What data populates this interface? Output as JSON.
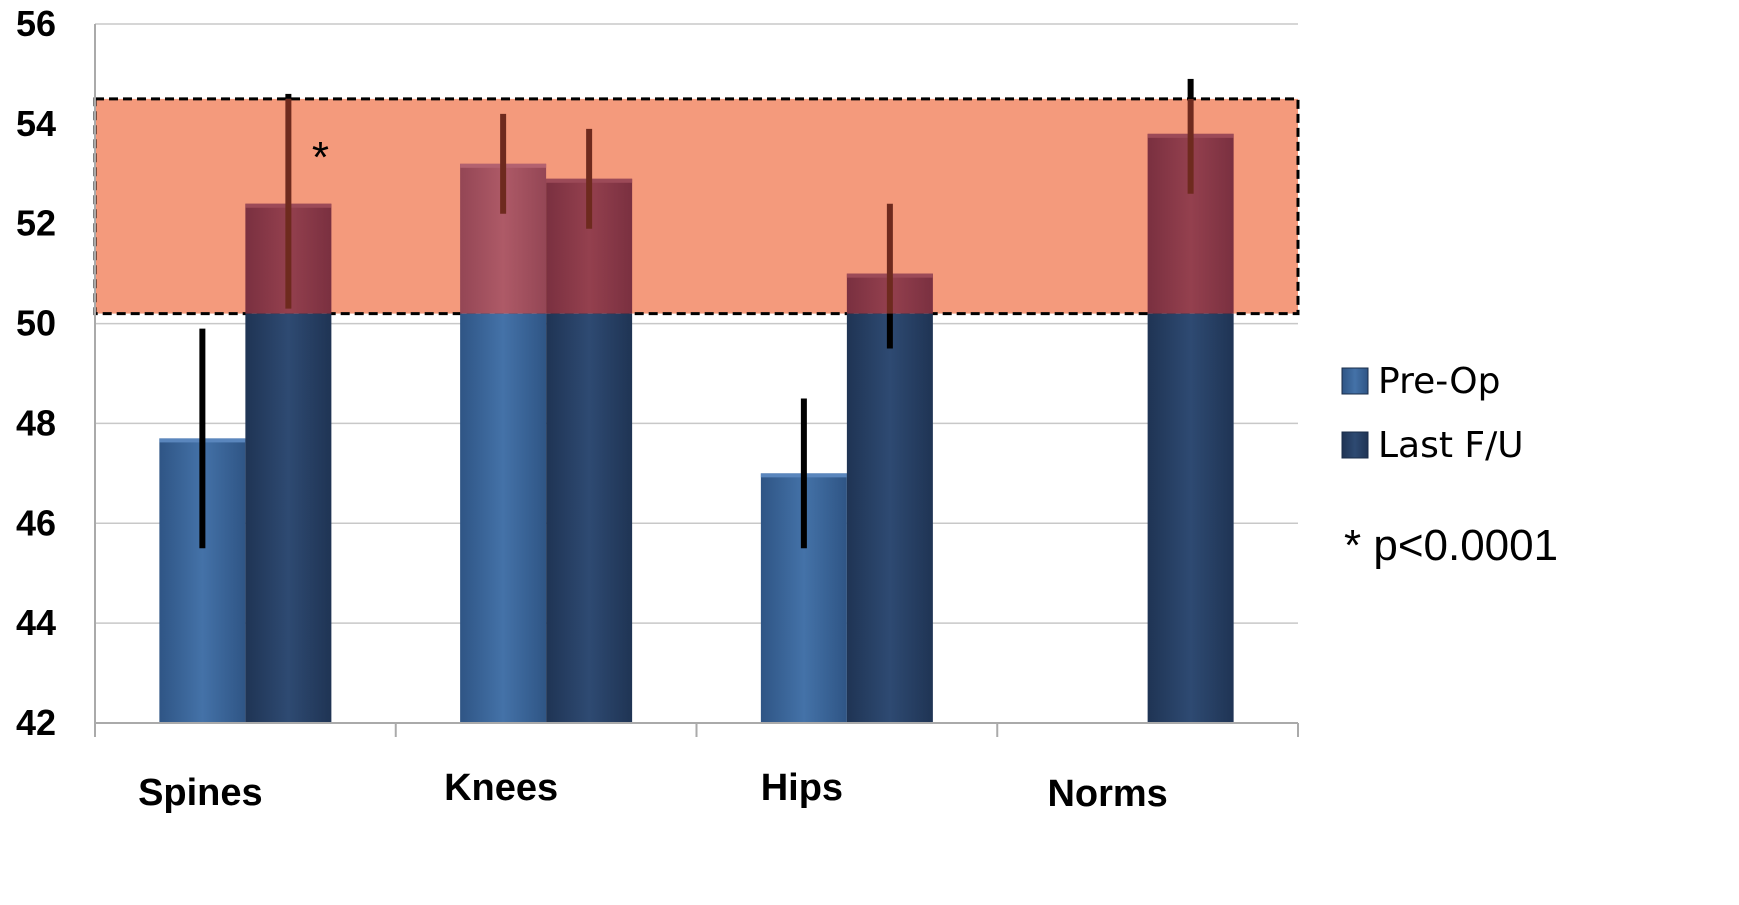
{
  "chart_data": {
    "type": "bar",
    "categories": [
      "Spines",
      "Knees",
      "Hips",
      "Norms"
    ],
    "series": [
      {
        "name": "Pre-Op",
        "values": [
          47.7,
          53.2,
          47.0,
          null
        ],
        "error_low": [
          45.5,
          52.2,
          45.5,
          null
        ],
        "error_high": [
          49.9,
          54.2,
          48.5,
          null
        ],
        "color": "#3d6597"
      },
      {
        "name": "Last F/U",
        "values": [
          52.4,
          52.9,
          51.0,
          53.8
        ],
        "error_low": [
          50.3,
          51.9,
          49.5,
          52.6
        ],
        "error_high": [
          54.6,
          53.9,
          52.4,
          54.9
        ],
        "color": "#273f64"
      }
    ],
    "title": "",
    "xlabel": "",
    "ylabel": "",
    "ylim": [
      42,
      56
    ],
    "yticks": [
      42,
      44,
      46,
      48,
      50,
      52,
      54,
      56
    ],
    "grid": true,
    "legend": "right",
    "highlight_band": {
      "y_from": 50.2,
      "y_to": 54.5,
      "color": "#f49a7c",
      "border": "dashed"
    },
    "annotations": [
      {
        "text": "*",
        "category": "Spines",
        "series": "Last F/U"
      },
      {
        "text": "* p<0.0001",
        "position": "right"
      }
    ],
    "colors": {
      "band_overlay_preop": "#a24f5d",
      "band_overlay_lastfu": "#8a3a49",
      "error_in_band": "#6e2a1e",
      "error_default": "#000000"
    }
  }
}
